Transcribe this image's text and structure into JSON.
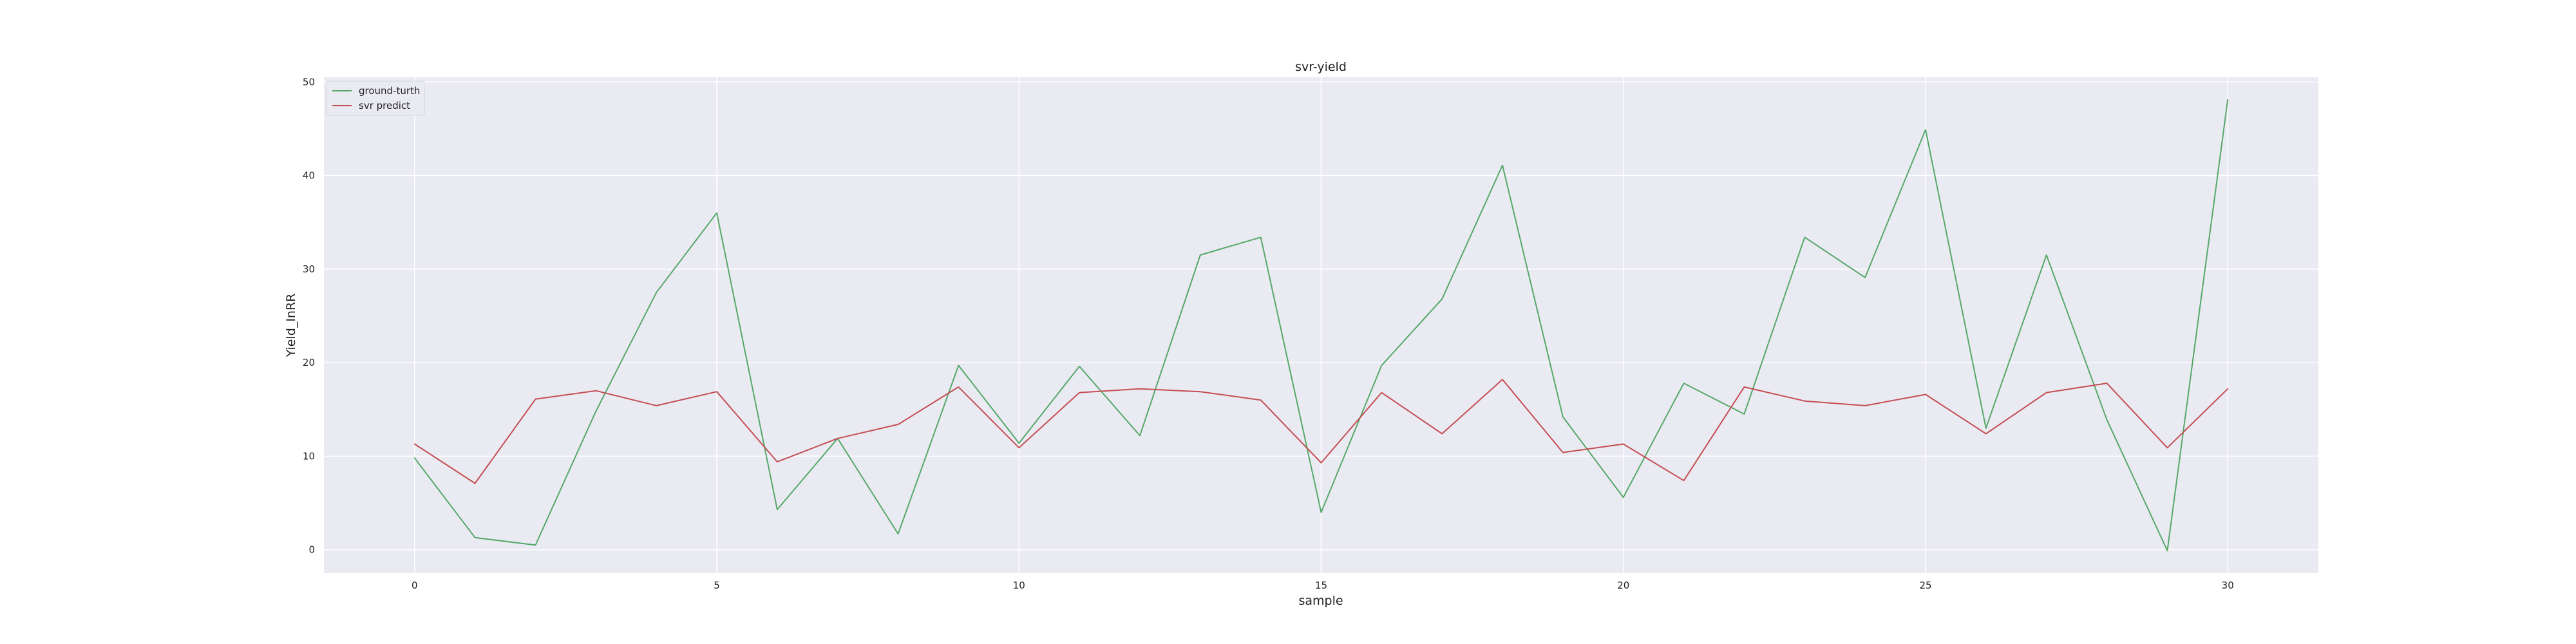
{
  "chart_data": {
    "type": "line",
    "title": "svr-yield",
    "xlabel": "sample",
    "ylabel": "Yield_InRR",
    "xlim": [
      -1.5,
      31.5
    ],
    "ylim": [
      -2.5,
      50.5
    ],
    "xticks": [
      0,
      5,
      10,
      15,
      20,
      25,
      30
    ],
    "yticks": [
      0,
      10,
      20,
      30,
      40,
      50
    ],
    "grid": true,
    "legend_position": "top-left",
    "background_color": "#eaeaf2",
    "grid_color": "#ffffff",
    "x": [
      0,
      1,
      2,
      3,
      4,
      5,
      6,
      7,
      8,
      9,
      10,
      11,
      12,
      13,
      14,
      15,
      16,
      17,
      18,
      19,
      20,
      21,
      22,
      23,
      24,
      25,
      26,
      27,
      28,
      29,
      30
    ],
    "series": [
      {
        "name": "ground-turth",
        "color": "#55a868",
        "values": [
          9.8,
          1.3,
          0.5,
          14.8,
          27.5,
          36.0,
          4.3,
          11.9,
          1.7,
          19.7,
          11.4,
          19.6,
          12.2,
          31.5,
          33.4,
          4.0,
          19.7,
          26.8,
          41.1,
          14.2,
          5.6,
          17.8,
          14.5,
          33.4,
          29.1,
          44.9,
          13.0,
          31.5,
          13.9,
          -0.1,
          48.1
        ]
      },
      {
        "name": "svr predict",
        "color": "#c44e52",
        "values": [
          11.3,
          7.1,
          16.1,
          17.0,
          15.4,
          16.9,
          9.4,
          11.9,
          13.4,
          17.4,
          10.9,
          16.8,
          17.2,
          16.9,
          16.0,
          9.3,
          16.8,
          12.4,
          18.2,
          10.4,
          11.3,
          7.4,
          17.4,
          15.9,
          15.4,
          16.6,
          12.4,
          16.8,
          17.8,
          10.9,
          17.2
        ]
      }
    ]
  }
}
